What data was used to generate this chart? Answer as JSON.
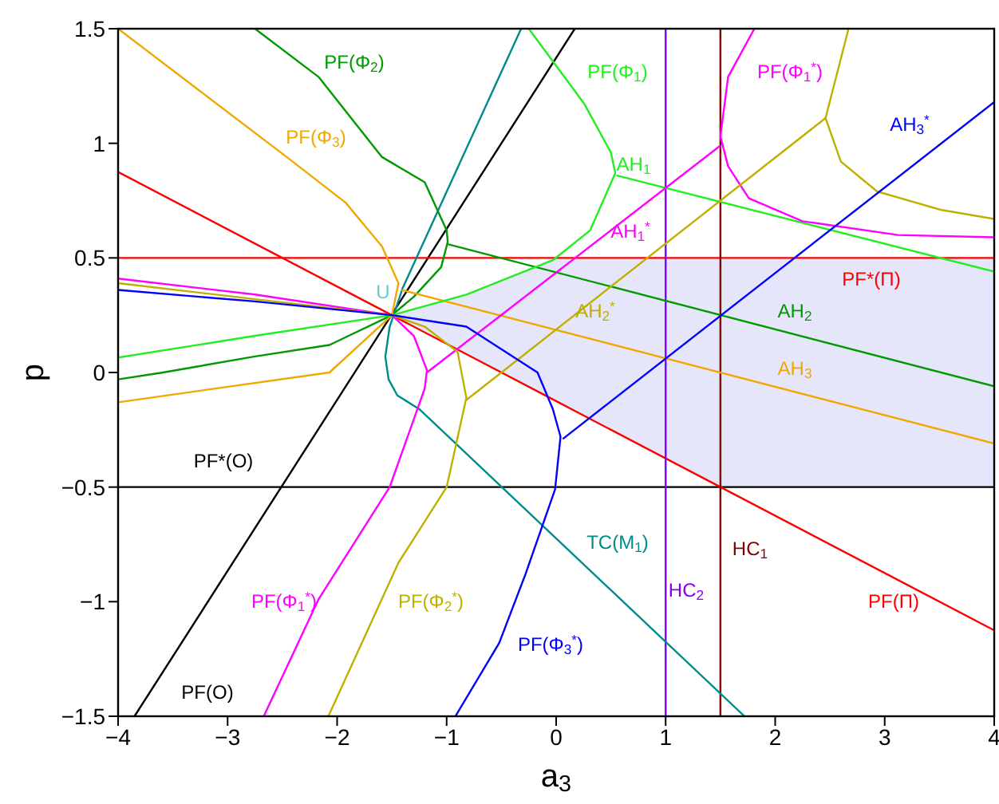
{
  "chart_data": {
    "type": "line",
    "xlabel": "a$_{3}$",
    "ylabel": "p",
    "xlim": [
      -4,
      4
    ],
    "xticks": [
      -4,
      -3,
      -2,
      -1,
      0,
      1,
      2,
      3,
      4
    ],
    "ylim": [
      -1.5,
      1.5
    ],
    "yticks": [
      -1.5,
      -1,
      -0.5,
      0,
      0.5,
      1,
      1.5
    ],
    "grid": false,
    "legend": false,
    "marker": "none",
    "line_style": "solid",
    "series": [
      {
        "name": "PF(O)",
        "color": "#000000",
        "x": [
          -3.85,
          0.17
        ],
        "values": [
          -1.5,
          1.5
        ]
      },
      {
        "name": "PF*(O)",
        "color": "#000000",
        "x": [
          -4,
          4
        ],
        "values": [
          -0.5,
          -0.5
        ]
      },
      {
        "name": "PF*(Π)",
        "color": "#ff0000",
        "x": [
          -4,
          4
        ],
        "values": [
          0.5,
          0.5
        ]
      },
      {
        "name": "PF(Π)",
        "color": "#ff0000",
        "x": [
          -4,
          -1.5,
          -0.82,
          0,
          1.5,
          4
        ],
        "values": [
          0.875,
          0.25,
          0.08,
          -0.125,
          -0.5,
          -1.125
        ],
        "lower": [
          null,
          0.25,
          0.08,
          -0.125,
          -0.5,
          -0.5
        ],
        "upper": [
          null,
          0.25,
          0.34,
          0.5,
          0.5,
          0.5
        ]
      },
      {
        "name": "HC$_{2}$",
        "color": "#8000ff",
        "x": [
          1,
          1
        ],
        "values": [
          -1.5,
          1.5
        ]
      },
      {
        "name": "HC$_{1}$",
        "color": "#800000",
        "x": [
          1.5,
          1.5
        ],
        "values": [
          -1.5,
          1.5
        ]
      },
      {
        "name": "TC(M$_{1}$)",
        "color": "#008b8b",
        "x": [
          -0.32,
          -1.4,
          -1.52,
          -1.56,
          -1.53,
          -1.45,
          -1.25,
          1.72
        ],
        "values": [
          1.5,
          0.37,
          0.2,
          0.07,
          -0.03,
          -0.1,
          -0.16,
          -1.5
        ]
      },
      {
        "name": "PF(Φ$_{2}$)",
        "color": "#009900",
        "x": [
          -2.75,
          -2.17,
          -1.59,
          -1.2,
          -1.0,
          -0.99,
          -1.05,
          -1.3,
          -1.5,
          -2.07,
          -2.75,
          -3.59,
          -4
        ],
        "values": [
          1.5,
          1.29,
          0.94,
          0.83,
          0.62,
          0.57,
          0.46,
          0.33,
          0.25,
          0.12,
          0.07,
          0.0,
          -0.03
        ]
      },
      {
        "name": "AH$_{2}$",
        "color": "#009900",
        "x": [
          -0.99,
          4
        ],
        "values": [
          0.56,
          -0.06
        ]
      },
      {
        "name": "PF(Φ$_{3}$)",
        "color": "#f0a800",
        "x": [
          -4,
          -2.46,
          -1.92,
          -1.59,
          -1.44,
          -1.5,
          -2.07,
          -4
        ],
        "values": [
          1.5,
          0.94,
          0.74,
          0.55,
          0.39,
          0.25,
          0.0,
          -0.13
        ]
      },
      {
        "name": "AH$_{3}$",
        "color": "#f0a800",
        "x": [
          -1.41,
          4
        ],
        "values": [
          0.36,
          -0.31
        ]
      },
      {
        "name": "PF(Φ$_{1}$)",
        "color": "#22ee22",
        "x": [
          -0.25,
          0.26,
          0.5,
          0.54,
          0.31,
          -0.03,
          -0.82,
          -1.5,
          -2.75,
          -4
        ],
        "values": [
          1.5,
          1.17,
          0.96,
          0.87,
          0.62,
          0.49,
          0.34,
          0.25,
          0.16,
          0.065
        ]
      },
      {
        "name": "AH$_{1}$",
        "color": "#22ee22",
        "x": [
          0.55,
          4
        ],
        "values": [
          0.86,
          0.44
        ]
      },
      {
        "name": "PF(Φ$_{1}$$^{*}$)",
        "color": "#ff00ff",
        "x": [
          -2.67,
          -2.17,
          -1.52,
          -1.2,
          -1.18,
          -1.3,
          -1.5,
          -2.75,
          -4
        ],
        "values": [
          -1.5,
          -0.99,
          -0.5,
          -0.07,
          0.01,
          0.16,
          0.25,
          0.34,
          0.41
        ]
      },
      {
        "name": "AH$_{1}$$^{*}$",
        "color": "#ff00ff",
        "x": [
          -1.18,
          1.5
        ],
        "values": [
          0.0,
          0.99
        ]
      },
      {
        "name": "PF(Φ$_{1}$$^{*}$)",
        "color": "#ff00ff",
        "x": [
          1.81,
          1.57,
          1.5,
          1.57,
          1.76,
          2.25,
          3.12,
          4
        ],
        "values": [
          1.5,
          1.29,
          1.03,
          0.9,
          0.76,
          0.66,
          0.6,
          0.59
        ]
      },
      {
        "name": "PF(Φ$_{2}$$^{*}$)",
        "color": "#bfb000",
        "x": [
          -2.08,
          -1.44,
          -1.0,
          -0.82,
          -0.9,
          -1.2,
          -1.5,
          -4
        ],
        "values": [
          -1.5,
          -0.83,
          -0.5,
          -0.11,
          0.09,
          0.2,
          0.25,
          0.39
        ]
      },
      {
        "name": "AH$_{2}$$^{*}$",
        "color": "#bfb000",
        "x": [
          -0.82,
          2.46
        ],
        "values": [
          -0.12,
          1.11
        ]
      },
      {
        "color": "#bfb000",
        "x": [
          2.67,
          2.46,
          2.6,
          2.93,
          3.51,
          4
        ],
        "values": [
          1.5,
          1.11,
          0.92,
          0.79,
          0.71,
          0.67
        ]
      },
      {
        "name": "PF(Φ$_{3}$$^{*}$)",
        "color": "#0000ff",
        "x": [
          -4,
          -2.75,
          -1.5,
          -0.82,
          -0.17,
          -0.03,
          0.04,
          -0.01,
          -0.28,
          -0.52,
          -0.92
        ],
        "values": [
          0.36,
          0.31,
          0.25,
          0.2,
          0.0,
          -0.16,
          -0.28,
          -0.51,
          -0.88,
          -1.18,
          -1.5
        ]
      },
      {
        "name": "AH$_{3}$$^{*}$",
        "color": "#0000ff",
        "x": [
          0.06,
          4
        ],
        "values": [
          -0.29,
          1.18
        ]
      }
    ],
    "annotations": [
      "U"
    ]
  }
}
